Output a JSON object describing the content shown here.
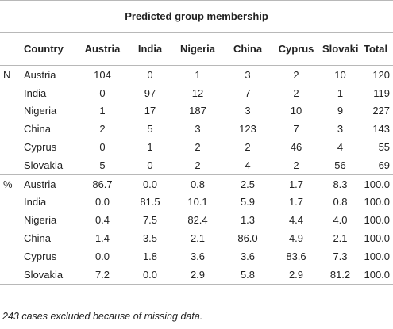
{
  "title": "Predicted group membership",
  "columns": [
    "Country",
    "Austria",
    "India",
    "Nigeria",
    "China",
    "Cyprus",
    "Slovakia",
    "Total"
  ],
  "sections": [
    {
      "label": "N",
      "rows": [
        {
          "country": "Austria",
          "values": [
            "104",
            "0",
            "1",
            "3",
            "2",
            "10",
            "120"
          ]
        },
        {
          "country": "India",
          "values": [
            "0",
            "97",
            "12",
            "7",
            "2",
            "1",
            "119"
          ]
        },
        {
          "country": "Nigeria",
          "values": [
            "1",
            "17",
            "187",
            "3",
            "10",
            "9",
            "227"
          ]
        },
        {
          "country": "China",
          "values": [
            "2",
            "5",
            "3",
            "123",
            "7",
            "3",
            "143"
          ]
        },
        {
          "country": "Cyprus",
          "values": [
            "0",
            "1",
            "2",
            "2",
            "46",
            "4",
            "55"
          ]
        },
        {
          "country": "Slovakia",
          "values": [
            "5",
            "0",
            "2",
            "4",
            "2",
            "56",
            "69"
          ]
        }
      ]
    },
    {
      "label": "%",
      "rows": [
        {
          "country": "Austria",
          "values": [
            "86.7",
            "0.0",
            "0.8",
            "2.5",
            "1.7",
            "8.3",
            "100.0"
          ]
        },
        {
          "country": "India",
          "values": [
            "0.0",
            "81.5",
            "10.1",
            "5.9",
            "1.7",
            "0.8",
            "100.0"
          ]
        },
        {
          "country": "Nigeria",
          "values": [
            "0.4",
            "7.5",
            "82.4",
            "1.3",
            "4.4",
            "4.0",
            "100.0"
          ]
        },
        {
          "country": "China",
          "values": [
            "1.4",
            "3.5",
            "2.1",
            "86.0",
            "4.9",
            "2.1",
            "100.0"
          ]
        },
        {
          "country": "Cyprus",
          "values": [
            "0.0",
            "1.8",
            "3.6",
            "3.6",
            "83.6",
            "7.3",
            "100.0"
          ]
        },
        {
          "country": "Slovakia",
          "values": [
            "7.2",
            "0.0",
            "2.9",
            "5.8",
            "2.9",
            "81.2",
            "100.0"
          ]
        }
      ]
    }
  ],
  "footnote": "243 cases excluded because of missing data."
}
